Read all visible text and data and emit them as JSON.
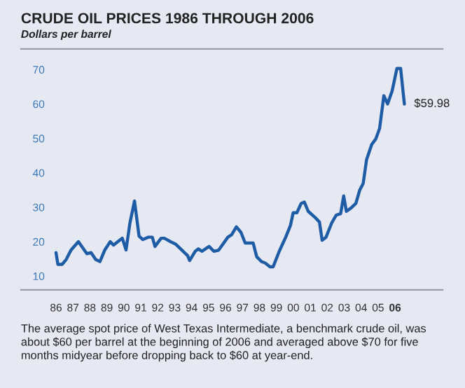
{
  "chart_data": {
    "type": "line",
    "title": "CRUDE OIL PRICES 1986 THROUGH 2006",
    "subtitle": "Dollars per barrel",
    "x": [
      1986.0,
      1986.11,
      1986.36,
      1986.6,
      1986.88,
      1987.32,
      1987.82,
      1988.07,
      1988.34,
      1988.59,
      1988.87,
      1989.2,
      1989.39,
      1989.91,
      1990.13,
      1990.36,
      1990.63,
      1990.9,
      1991.12,
      1991.45,
      1991.68,
      1991.84,
      1992.2,
      1992.39,
      1992.75,
      1993.05,
      1993.77,
      1993.88,
      1994.21,
      1994.4,
      1994.6,
      1995.03,
      1995.31,
      1995.59,
      1996.14,
      1996.36,
      1996.64,
      1996.91,
      1997.16,
      1997.63,
      1997.84,
      1998.12,
      1998.34,
      1998.62,
      1998.81,
      1999.17,
      1999.55,
      1999.83,
      1999.99,
      2000.21,
      2000.46,
      2000.65,
      2000.88,
      2001.29,
      2001.54,
      2001.7,
      2001.93,
      2002.26,
      2002.53,
      2002.79,
      2002.97,
      2003.13,
      2003.41,
      2003.69,
      2003.91,
      2004.12,
      2004.32,
      2004.62,
      2004.87,
      2005.09,
      2005.34,
      2005.56,
      2005.83,
      2006.11,
      2006.33,
      2006.55
    ],
    "series": [
      {
        "color": "#1f5ca6",
        "values": [
          16.8,
          13.4,
          13.4,
          14.8,
          17.5,
          20.0,
          16.5,
          16.8,
          14.8,
          14.2,
          17.5,
          20.0,
          19.0,
          21.0,
          17.6,
          25.4,
          31.8,
          21.6,
          20.6,
          21.3,
          21.3,
          18.6,
          21.0,
          21.0,
          20.0,
          19.3,
          15.9,
          14.5,
          17.2,
          17.9,
          17.2,
          18.6,
          17.2,
          17.5,
          21.3,
          22.0,
          24.3,
          22.7,
          19.6,
          19.6,
          15.6,
          14.2,
          13.8,
          12.7,
          12.7,
          17.2,
          21.3,
          24.7,
          28.4,
          28.4,
          31.1,
          31.5,
          28.8,
          27.0,
          25.7,
          20.4,
          21.3,
          25.4,
          27.7,
          28.1,
          33.3,
          28.8,
          29.8,
          31.1,
          34.9,
          36.9,
          43.8,
          48.2,
          49.9,
          52.9,
          62.4,
          60.0,
          63.8,
          70.3,
          70.3,
          59.98
        ]
      }
    ],
    "xlim": [
      1983.93,
      2008.81
    ],
    "ylim": [
      6,
      76
    ],
    "xticks": [
      {
        "value": 1986,
        "label": "86"
      },
      {
        "value": 1987,
        "label": "87"
      },
      {
        "value": 1988,
        "label": "88"
      },
      {
        "value": 1989,
        "label": "89"
      },
      {
        "value": 1990,
        "label": "90"
      },
      {
        "value": 1991,
        "label": "91"
      },
      {
        "value": 1992,
        "label": "92"
      },
      {
        "value": 1993,
        "label": "93"
      },
      {
        "value": 1994,
        "label": "94"
      },
      {
        "value": 1995,
        "label": "95"
      },
      {
        "value": 1996,
        "label": "96"
      },
      {
        "value": 1997,
        "label": "97"
      },
      {
        "value": 1998,
        "label": "98"
      },
      {
        "value": 1999,
        "label": "99"
      },
      {
        "value": 2000,
        "label": "00"
      },
      {
        "value": 2001,
        "label": "01"
      },
      {
        "value": 2002,
        "label": "02"
      },
      {
        "value": 2003,
        "label": "03"
      },
      {
        "value": 2004,
        "label": "04"
      },
      {
        "value": 2005,
        "label": "05"
      },
      {
        "value": 2006,
        "label": "06"
      }
    ],
    "yticks": [
      10,
      20,
      30,
      40,
      50,
      60,
      70
    ],
    "annotations": [
      {
        "text": "$59.98",
        "x": 2006.55,
        "y": 59.98
      },
      "The average spot price of West Texas Intermediate, a benchmark crude oil, was about $60 per barrel at the beginning of 2006 and averaged above $70 for five months midyear before dropping back to $60 at year-end."
    ],
    "grid": false,
    "marker": "none",
    "line_style": "solid"
  }
}
